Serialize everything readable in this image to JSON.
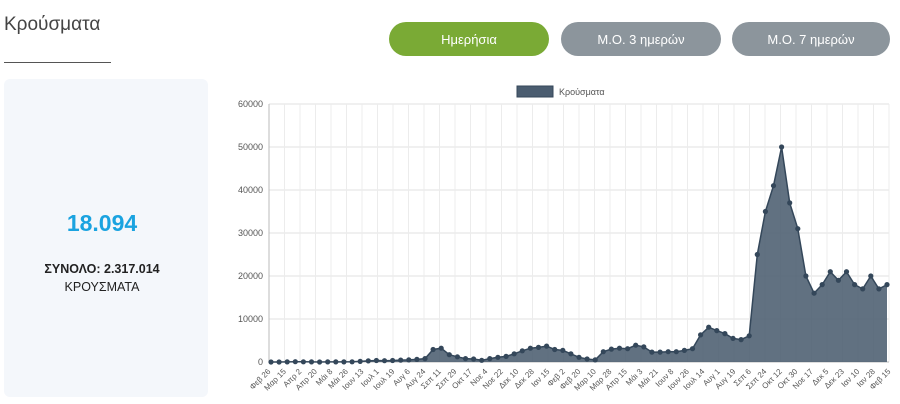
{
  "page": {
    "title": "Κρούσματα",
    "buttons": {
      "daily": "Ημερήσια",
      "avg3": "Μ.Ο. 3 ημερών",
      "avg7": "Μ.Ο. 7 ημερών"
    },
    "summary": {
      "value": "18.094",
      "total_label": "ΣΥΝΟΛΟ: 2.317.014",
      "unit": "ΚΡΟΥΣΜΑΤΑ"
    },
    "colors": {
      "active_button": "#7aaa35",
      "inactive_button": "#8c959c",
      "highlight": "#1aa3e0",
      "series_fill": "#4b5d70"
    }
  },
  "chart_data": {
    "type": "area",
    "legend": "Κρούσματα",
    "legend_position": "top",
    "ylim": [
      0,
      60000
    ],
    "yticks": [
      0,
      10000,
      20000,
      30000,
      40000,
      50000,
      60000
    ],
    "grid": true,
    "xlabels": [
      "Φεβ 26",
      "Μαρ 15",
      "Απρ 2",
      "Απρ 20",
      "Μάι 8",
      "Μάι 26",
      "Ιουν 13",
      "Ιουλ 1",
      "Ιουλ 19",
      "Αυγ 6",
      "Αυγ 24",
      "Σεπ 11",
      "Σεπ 29",
      "Οκτ 17",
      "Νοε 4",
      "Νοε 22",
      "Δεκ 10",
      "Δεκ 28",
      "Ιαν 15",
      "Φεβ 2",
      "Φεβ 20",
      "Μαρ 10",
      "Μαρ 28",
      "Απρ 15",
      "Μάι 3",
      "Μάι 21",
      "Ιουν 8",
      "Ιουν 26",
      "Ιουλ 14",
      "Αυγ 1",
      "Αυγ 19",
      "Σεπ 6",
      "Σεπ 24",
      "Οκτ 12",
      "Οκτ 30",
      "Νοε 17",
      "Δεκ 5",
      "Δεκ 23",
      "Ιαν 10",
      "Ιαν 28",
      "Φεβ 15"
    ],
    "series": [
      {
        "name": "Κρούσματα",
        "values": [
          0,
          5,
          30,
          70,
          40,
          20,
          10,
          15,
          25,
          30,
          50,
          150,
          250,
          350,
          300,
          350,
          450,
          500,
          600,
          800,
          2900,
          3200,
          1700,
          1200,
          800,
          700,
          400,
          800,
          1100,
          1300,
          1900,
          2600,
          3200,
          3400,
          3700,
          2900,
          2700,
          1900,
          1100,
          700,
          500,
          2400,
          3000,
          3200,
          3100,
          3900,
          3500,
          2300,
          2300,
          2400,
          2400,
          2700,
          3100,
          6300,
          8100,
          7300,
          6600,
          5500,
          5200,
          6100,
          25000,
          35000,
          41000,
          50000,
          37000,
          31000,
          20000,
          16000,
          18000,
          21000,
          19000,
          21000,
          18000,
          17000,
          20000,
          17000,
          18000
        ]
      }
    ]
  }
}
